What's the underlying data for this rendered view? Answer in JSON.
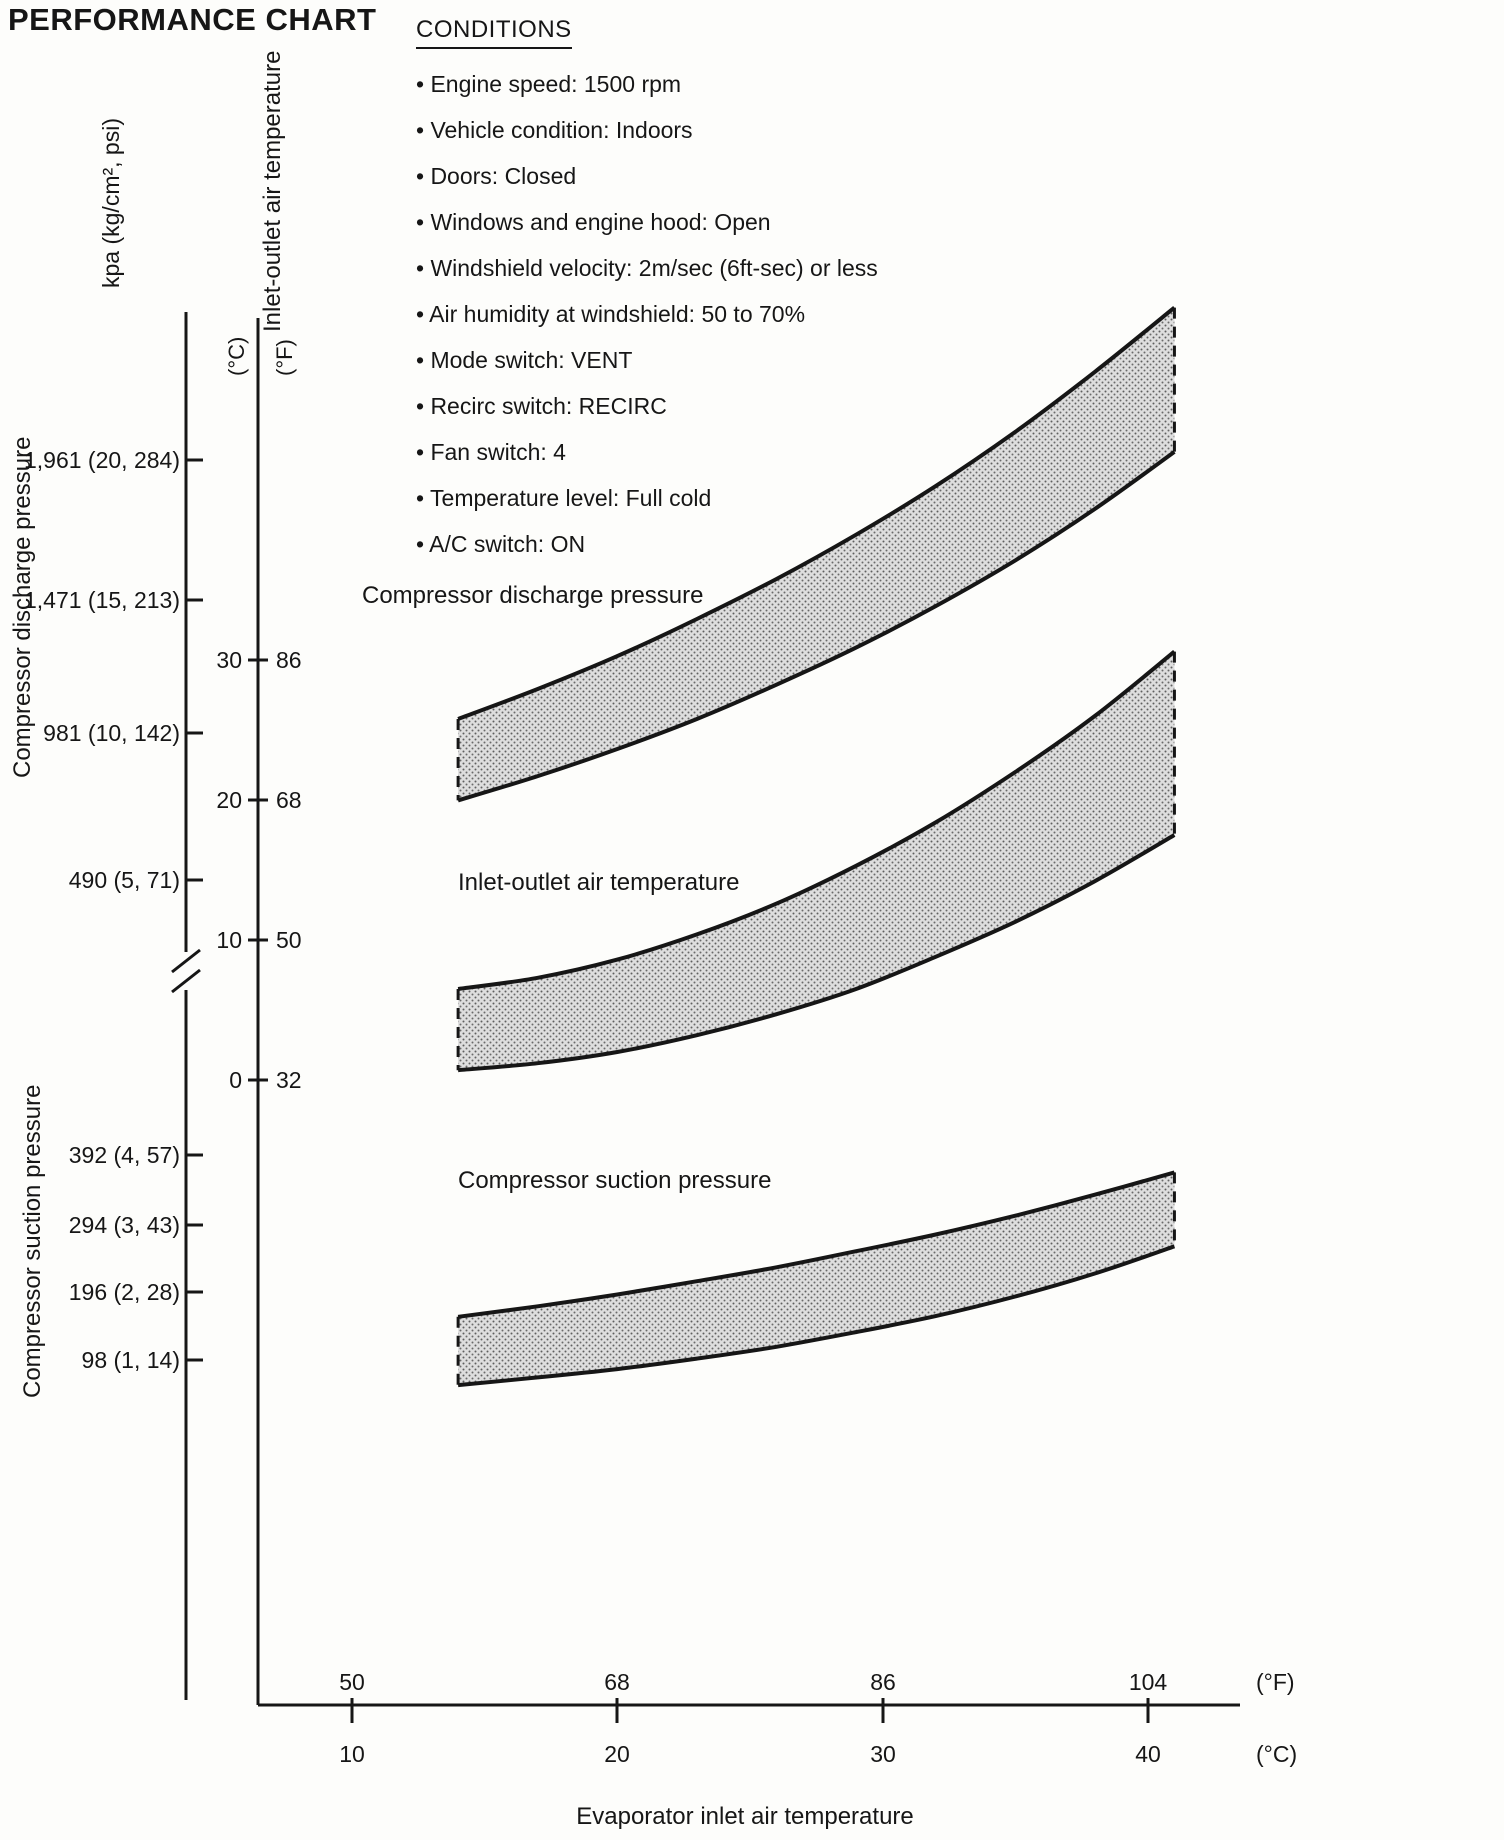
{
  "title": "PERFORMANCE CHART",
  "conditions": {
    "heading": "CONDITIONS",
    "items": [
      "• Engine speed: 1500 rpm",
      "• Vehicle condition: Indoors",
      "• Doors: Closed",
      "• Windows and engine hood: Open",
      "• Windshield velocity: 2m/sec (6ft-sec) or less",
      "• Air humidity at windshield: 50 to 70%",
      "• Mode switch: VENT",
      "• Recirc switch: RECIRC",
      "• Fan switch: 4",
      "• Temperature level: Full cold",
      "• A/C switch: ON"
    ]
  },
  "chart_data": {
    "type": "area",
    "title": "PERFORMANCE CHART",
    "x_axis": {
      "label": "Evaporator inlet air temperature",
      "unit_f": "(°F)",
      "unit_c": "(°C)",
      "ticks_f": [
        "50",
        "68",
        "86",
        "104"
      ],
      "ticks_c": [
        "10",
        "20",
        "30",
        "40"
      ]
    },
    "pressure_axis": {
      "unit_label": "kpa (kg/cm², psi)",
      "discharge_title": "Compressor discharge pressure",
      "suction_title": "Compressor suction pressure",
      "discharge_ticks": [
        "1,961 (20, 284)",
        "1,471 (15, 213)",
        "981 (10, 142)",
        "490 (5, 71)"
      ],
      "suction_ticks": [
        "392 (4, 57)",
        "294 (3, 43)",
        "196 (2, 28)",
        "98 (1, 14)"
      ]
    },
    "temp_axis": {
      "title": "Inlet-outlet air temperature",
      "unit_c": "(°C)",
      "unit_f": "(°F)",
      "ticks_c": [
        "30",
        "20",
        "10",
        "0"
      ],
      "ticks_f": [
        "86",
        "68",
        "50",
        "32"
      ]
    },
    "bands": [
      {
        "label": "Compressor discharge pressure",
        "scale": "discharge",
        "y_unit": "kPa",
        "x_c": [
          14,
          17,
          20,
          23,
          26,
          29,
          32,
          35,
          38,
          41
        ],
        "upper": [
          1030,
          1135,
          1250,
          1380,
          1520,
          1675,
          1845,
          2035,
          2245,
          2470
        ],
        "lower": [
          745,
          830,
          925,
          1030,
          1150,
          1280,
          1425,
          1585,
          1765,
          1965
        ]
      },
      {
        "label": "Inlet-outlet air temperature",
        "scale": "air_temp",
        "y_unit": "°C",
        "x_c": [
          14,
          17,
          20,
          23,
          26,
          29,
          32,
          35,
          38,
          41
        ],
        "upper": [
          6.5,
          7.3,
          8.6,
          10.4,
          12.6,
          15.3,
          18.4,
          22.0,
          26.0,
          30.6
        ],
        "lower": [
          0.7,
          1.2,
          2.0,
          3.2,
          4.7,
          6.5,
          8.8,
          11.3,
          14.2,
          17.5
        ]
      },
      {
        "label": "Compressor suction pressure",
        "scale": "suction",
        "y_unit": "kPa",
        "x_c": [
          14,
          17,
          20,
          23,
          26,
          29,
          32,
          35,
          38,
          41
        ],
        "upper": [
          160,
          175,
          192,
          211,
          231,
          254,
          278,
          305,
          335,
          367
        ],
        "lower": [
          62,
          73,
          85,
          100,
          117,
          138,
          161,
          189,
          222,
          261
        ]
      }
    ]
  }
}
